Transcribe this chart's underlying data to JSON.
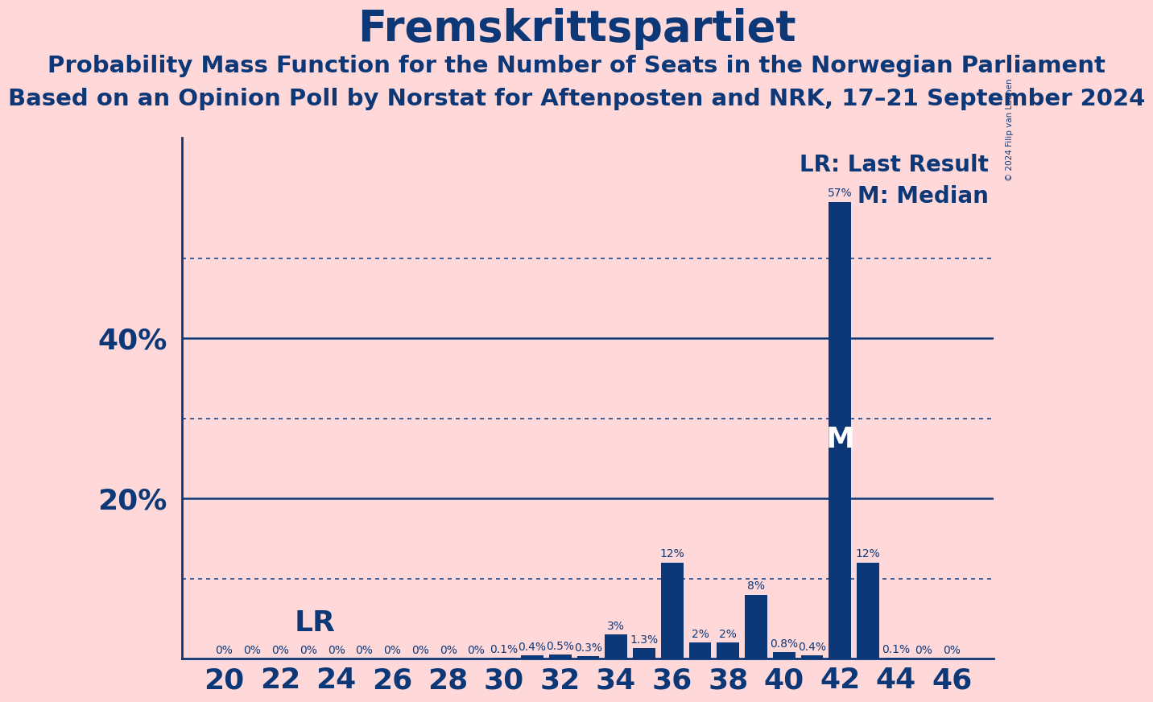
{
  "title": "Fremskrittspartiet",
  "subtitle1": "Probability Mass Function for the Number of Seats in the Norwegian Parliament",
  "subtitle2": "Based on an Opinion Poll by Norstat for Aftenposten and NRK, 17–21 September 2024",
  "copyright": "© 2024 Filip van Laenen",
  "seats": [
    20,
    21,
    22,
    23,
    24,
    25,
    26,
    27,
    28,
    29,
    30,
    31,
    32,
    33,
    34,
    35,
    36,
    37,
    38,
    39,
    40,
    41,
    42,
    43,
    44,
    45,
    46
  ],
  "probabilities": [
    0.0,
    0.0,
    0.0,
    0.0,
    0.0,
    0.0,
    0.0,
    0.0,
    0.0,
    0.0,
    0.1,
    0.4,
    0.5,
    0.3,
    3.0,
    1.3,
    12.0,
    2.0,
    2.0,
    8.0,
    0.8,
    0.4,
    57.0,
    12.0,
    0.1,
    0.0,
    0.0
  ],
  "bar_color": "#0d3878",
  "background_color": "#ffd9d9",
  "text_color": "#0d3878",
  "last_result": 21,
  "median": 42,
  "median_seat": 42,
  "lr_label": "LR",
  "lr_legend": "LR: Last Result",
  "m_legend": "M: Median",
  "ylim": [
    0,
    65
  ],
  "solid_yticks": [
    20,
    40
  ],
  "dotted_yticks": [
    10,
    30,
    50
  ],
  "xlim_left": 18.5,
  "xlim_right": 47.5,
  "xlabel_fontsize": 26,
  "title_fontsize": 38,
  "subtitle_fontsize": 21,
  "bar_label_fontsize": 10,
  "ylabel_fontsize": 26,
  "legend_fontsize": 20,
  "lr_text_fontsize": 26,
  "m_text_fontsize": 26
}
